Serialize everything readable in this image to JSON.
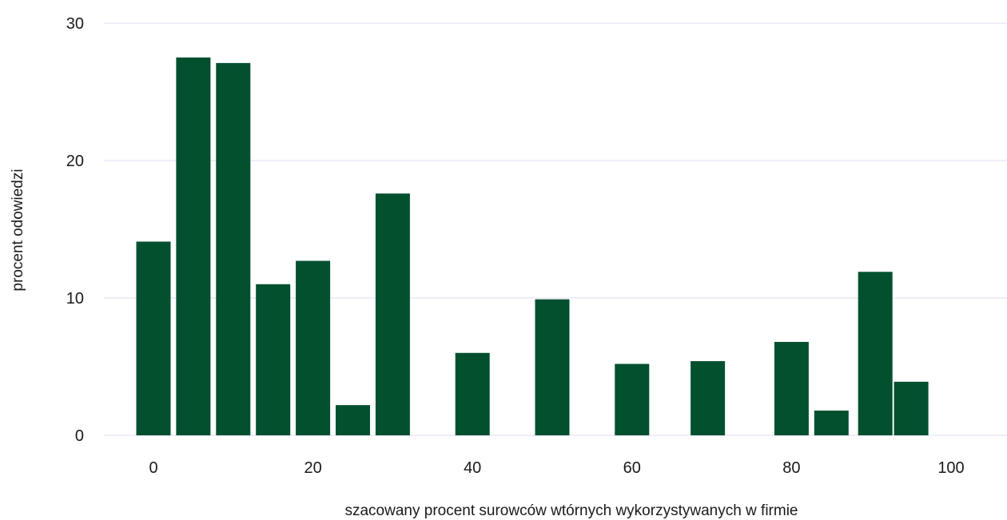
{
  "chart_data": {
    "type": "bar",
    "title": "",
    "xlabel": "szacowany procent surowców wtórnych wykorzystywanych w firmie",
    "ylabel": "procent odowiedzi",
    "x_ticks": [
      "0",
      "20",
      "40",
      "60",
      "80",
      "100"
    ],
    "y_ticks": [
      "0",
      "10",
      "20",
      "30"
    ],
    "xlim": [
      0,
      100
    ],
    "ylim": [
      0,
      30
    ],
    "grid": "horizontal",
    "bar_color": "#03502f",
    "grid_color": "#dcdcf0",
    "bars": [
      {
        "x": 0.0,
        "value": 14.1
      },
      {
        "x": 5.0,
        "value": 27.5
      },
      {
        "x": 10.0,
        "value": 27.1
      },
      {
        "x": 15.0,
        "value": 11.0
      },
      {
        "x": 20.0,
        "value": 12.7
      },
      {
        "x": 25.0,
        "value": 2.2
      },
      {
        "x": 30.0,
        "value": 17.6
      },
      {
        "x": 40.0,
        "value": 6.0
      },
      {
        "x": 50.0,
        "value": 9.9
      },
      {
        "x": 60.0,
        "value": 5.2
      },
      {
        "x": 69.5,
        "value": 5.4
      },
      {
        "x": 80.0,
        "value": 6.8
      },
      {
        "x": 85.0,
        "value": 1.8
      },
      {
        "x": 90.5,
        "value": 11.9
      },
      {
        "x": 95.0,
        "value": 3.9
      }
    ]
  }
}
